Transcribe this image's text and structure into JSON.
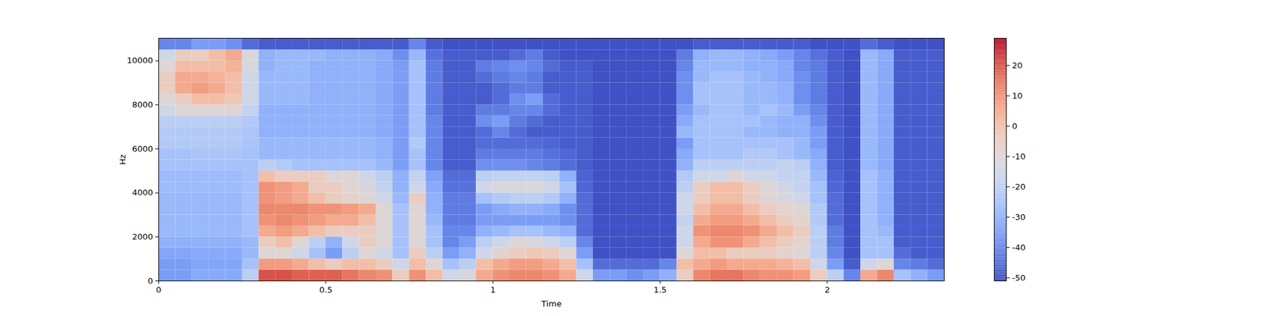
{
  "chart_data": {
    "type": "heatmap",
    "x_label": "Time",
    "y_label": "Hz",
    "xlim": [
      0,
      2.35
    ],
    "xticks": [
      0,
      0.5,
      1,
      1.5,
      2
    ],
    "ylim": [
      0,
      11025
    ],
    "yticks": [
      0,
      2000,
      4000,
      6000,
      8000,
      10000
    ],
    "zlim": [
      -51,
      29
    ],
    "zticks": [
      -50,
      -40,
      -30,
      -20,
      -10,
      0,
      10,
      20
    ],
    "grid": false,
    "x_edges": [
      0,
      0.05,
      0.1,
      0.15,
      0.2,
      0.25,
      0.3,
      0.35,
      0.4,
      0.45,
      0.5,
      0.55,
      0.6,
      0.65,
      0.7,
      0.75,
      0.8,
      0.85,
      0.9,
      0.95,
      1.0,
      1.05,
      1.1,
      1.15,
      1.2,
      1.25,
      1.3,
      1.35,
      1.4,
      1.45,
      1.5,
      1.55,
      1.6,
      1.65,
      1.7,
      1.75,
      1.8,
      1.85,
      1.9,
      1.95,
      2.0,
      2.05,
      2.1,
      2.15,
      2.2,
      2.25,
      2.3,
      2.35
    ],
    "y_edges": [
      0,
      500,
      1000,
      1500,
      2000,
      2500,
      3000,
      3500,
      4000,
      4500,
      5000,
      5500,
      6000,
      6500,
      7000,
      7500,
      8000,
      8500,
      9000,
      9500,
      10000,
      10500,
      11025
    ],
    "z": [
      [
        -35,
        -35,
        -32,
        -32,
        -32,
        -20,
        20,
        20,
        18,
        18,
        18,
        15,
        12,
        10,
        -5,
        10,
        0,
        -15,
        -12,
        5,
        10,
        12,
        12,
        10,
        5,
        -15,
        -35,
        -35,
        -38,
        -35,
        -30,
        -5,
        12,
        15,
        15,
        12,
        10,
        10,
        8,
        -5,
        -20,
        -40,
        5,
        12,
        -25,
        -30,
        -35
      ],
      [
        -35,
        -35,
        -33,
        -33,
        -33,
        -25,
        8,
        8,
        5,
        0,
        -5,
        0,
        0,
        -5,
        -15,
        0,
        -10,
        -25,
        -20,
        0,
        5,
        8,
        8,
        5,
        0,
        -25,
        -45,
        -45,
        -45,
        -45,
        -40,
        0,
        5,
        8,
        5,
        5,
        5,
        3,
        0,
        -15,
        -35,
        -48,
        -15,
        -10,
        -40,
        -42,
        -45
      ],
      [
        -33,
        -33,
        -32,
        -32,
        -32,
        -28,
        -10,
        -10,
        -15,
        -25,
        -35,
        -20,
        -10,
        -15,
        -25,
        -5,
        -20,
        -35,
        -30,
        -15,
        -8,
        -5,
        -3,
        -5,
        -10,
        -35,
        -50,
        -50,
        -50,
        -50,
        -50,
        -10,
        0,
        0,
        -5,
        -5,
        -5,
        -8,
        -10,
        -20,
        -40,
        -50,
        -25,
        -25,
        -45,
        -48,
        -48
      ],
      [
        -30,
        -30,
        -30,
        -30,
        -30,
        -28,
        -5,
        0,
        -10,
        -20,
        -30,
        -15,
        -5,
        -10,
        -25,
        -10,
        -25,
        -40,
        -35,
        -20,
        -15,
        -10,
        -12,
        -15,
        -20,
        -40,
        -50,
        -50,
        -50,
        -50,
        -50,
        -15,
        5,
        10,
        10,
        5,
        0,
        -5,
        -8,
        -20,
        -42,
        -50,
        -25,
        -25,
        -48,
        -48,
        -48
      ],
      [
        -28,
        -28,
        -28,
        -28,
        -28,
        -25,
        5,
        8,
        5,
        0,
        -5,
        -5,
        -5,
        -10,
        -25,
        -10,
        -25,
        -40,
        -40,
        -30,
        -28,
        -25,
        -25,
        -28,
        -30,
        -45,
        -50,
        -50,
        -50,
        -50,
        -50,
        -15,
        10,
        12,
        12,
        10,
        5,
        0,
        -5,
        -20,
        -42,
        -50,
        -25,
        -28,
        -48,
        -48,
        -48
      ],
      [
        -28,
        -28,
        -28,
        -28,
        -28,
        -25,
        10,
        12,
        10,
        8,
        5,
        5,
        0,
        -10,
        -25,
        -10,
        -28,
        -42,
        -42,
        -35,
        -35,
        -35,
        -35,
        -35,
        -38,
        -45,
        -50,
        -50,
        -50,
        -50,
        -50,
        -18,
        5,
        8,
        8,
        5,
        0,
        -5,
        -8,
        -22,
        -45,
        -50,
        -25,
        -30,
        -48,
        -48,
        -48
      ],
      [
        -28,
        -28,
        -28,
        -28,
        -28,
        -25,
        12,
        12,
        12,
        10,
        10,
        8,
        5,
        -10,
        -25,
        -10,
        -30,
        -42,
        -42,
        -35,
        -32,
        -30,
        -30,
        -32,
        -38,
        -45,
        -50,
        -50,
        -50,
        -50,
        -50,
        -15,
        0,
        5,
        5,
        0,
        -5,
        -8,
        -10,
        -22,
        -45,
        -50,
        -25,
        -30,
        -48,
        -48,
        -48
      ],
      [
        -28,
        -28,
        -28,
        -28,
        -28,
        -25,
        10,
        8,
        5,
        0,
        -5,
        -8,
        -10,
        -15,
        -28,
        -5,
        -30,
        -42,
        -42,
        -25,
        -22,
        -20,
        -20,
        -22,
        -30,
        -45,
        -50,
        -50,
        -50,
        -50,
        -50,
        -15,
        -5,
        0,
        0,
        -5,
        -10,
        -12,
        -15,
        -25,
        -45,
        -50,
        -25,
        -30,
        -48,
        -48,
        -48
      ],
      [
        -27,
        -27,
        -27,
        -27,
        -27,
        -25,
        10,
        8,
        5,
        -5,
        -5,
        -10,
        -12,
        -18,
        -30,
        -15,
        -32,
        -44,
        -44,
        -15,
        -12,
        -12,
        -12,
        -15,
        -25,
        -46,
        -50,
        -50,
        -50,
        -50,
        -50,
        -20,
        -5,
        0,
        0,
        -5,
        -10,
        -15,
        -18,
        -25,
        -46,
        -50,
        -25,
        -30,
        -48,
        -48,
        -48
      ],
      [
        -27,
        -27,
        -27,
        -27,
        -27,
        -25,
        0,
        -5,
        -5,
        -5,
        -10,
        -10,
        -15,
        -20,
        -30,
        -18,
        -34,
        -45,
        -45,
        -20,
        -18,
        -18,
        -18,
        -20,
        -30,
        -47,
        -50,
        -50,
        -50,
        -50,
        -50,
        -22,
        -15,
        -15,
        -10,
        -15,
        -15,
        -18,
        -18,
        -28,
        -47,
        -50,
        -25,
        -30,
        -48,
        -48,
        -48
      ],
      [
        -25,
        -25,
        -25,
        -25,
        -25,
        -25,
        -20,
        -22,
        -25,
        -25,
        -25,
        -25,
        -25,
        -28,
        -35,
        -25,
        -40,
        -48,
        -48,
        -38,
        -38,
        -38,
        -40,
        -42,
        -45,
        -48,
        -50,
        -50,
        -50,
        -50,
        -50,
        -30,
        -20,
        -20,
        -20,
        -20,
        -20,
        -18,
        -20,
        -30,
        -48,
        -50,
        -28,
        -32,
        -48,
        -48,
        -48
      ],
      [
        -25,
        -25,
        -24,
        -24,
        -24,
        -25,
        -28,
        -28,
        -28,
        -28,
        -28,
        -28,
        -28,
        -30,
        -35,
        -25,
        -40,
        -48,
        -48,
        -42,
        -42,
        -42,
        -42,
        -44,
        -46,
        -48,
        -50,
        -50,
        -50,
        -50,
        -50,
        -32,
        -25,
        -25,
        -25,
        -22,
        -22,
        -25,
        -28,
        -32,
        -48,
        -50,
        -28,
        -32,
        -48,
        -48,
        -48
      ],
      [
        -22,
        -22,
        -22,
        -22,
        -22,
        -24,
        -28,
        -28,
        -28,
        -28,
        -28,
        -28,
        -28,
        -30,
        -35,
        -22,
        -40,
        -48,
        -48,
        -45,
        -45,
        -45,
        -45,
        -46,
        -48,
        -48,
        -50,
        -50,
        -50,
        -50,
        -50,
        -35,
        -25,
        -25,
        -25,
        -25,
        -25,
        -25,
        -28,
        -35,
        -48,
        -50,
        -28,
        -32,
        -48,
        -48,
        -48
      ],
      [
        -22,
        -22,
        -22,
        -22,
        -22,
        -24,
        -30,
        -30,
        -30,
        -30,
        -30,
        -30,
        -30,
        -32,
        -35,
        -25,
        -40,
        -48,
        -48,
        -45,
        -40,
        -45,
        -48,
        -48,
        -48,
        -48,
        -50,
        -50,
        -50,
        -50,
        -50,
        -28,
        -25,
        -25,
        -25,
        -28,
        -28,
        -30,
        -30,
        -35,
        -48,
        -50,
        -28,
        -32,
        -48,
        -48,
        -48
      ],
      [
        -20,
        -20,
        -20,
        -20,
        -20,
        -22,
        -30,
        -30,
        -30,
        -30,
        -30,
        -30,
        -30,
        -32,
        -35,
        -25,
        -40,
        -48,
        -48,
        -38,
        -35,
        -42,
        -45,
        -48,
        -48,
        -48,
        -50,
        -50,
        -50,
        -50,
        -50,
        -32,
        -25,
        -25,
        -25,
        -25,
        -28,
        -30,
        -30,
        -38,
        -48,
        -50,
        -28,
        -32,
        -48,
        -48,
        -48
      ],
      [
        -15,
        -10,
        -10,
        -10,
        -10,
        -18,
        -30,
        -30,
        -30,
        -30,
        -30,
        -30,
        -30,
        -32,
        -35,
        -25,
        -42,
        -48,
        -48,
        -42,
        -42,
        -40,
        -40,
        -45,
        -48,
        -48,
        -50,
        -50,
        -50,
        -50,
        -50,
        -35,
        -28,
        -25,
        -25,
        -28,
        -25,
        -28,
        -35,
        -40,
        -48,
        -50,
        -28,
        -32,
        -48,
        -48,
        -48
      ],
      [
        -10,
        -5,
        0,
        0,
        -3,
        -15,
        -28,
        -28,
        -28,
        -30,
        -30,
        -30,
        -30,
        -32,
        -35,
        -25,
        -42,
        -48,
        -48,
        -48,
        -45,
        -38,
        -35,
        -45,
        -48,
        -48,
        -50,
        -50,
        -50,
        -50,
        -50,
        -38,
        -25,
        -25,
        -25,
        -28,
        -28,
        -30,
        -38,
        -42,
        -48,
        -50,
        -28,
        -32,
        -48,
        -48,
        -48
      ],
      [
        -5,
        5,
        8,
        5,
        0,
        -15,
        -28,
        -28,
        -28,
        -30,
        -30,
        -30,
        -30,
        -32,
        -35,
        -25,
        -42,
        -48,
        -48,
        -48,
        -45,
        -42,
        -42,
        -48,
        -48,
        -48,
        -50,
        -50,
        -50,
        -50,
        -50,
        -38,
        -25,
        -25,
        -25,
        -28,
        -28,
        -30,
        -38,
        -42,
        -48,
        -50,
        -28,
        -32,
        -48,
        -48,
        -48
      ],
      [
        -5,
        5,
        5,
        3,
        0,
        -15,
        -28,
        -28,
        -28,
        -30,
        -30,
        -30,
        -30,
        -32,
        -35,
        -25,
        -42,
        -48,
        -48,
        -45,
        -42,
        -40,
        -42,
        -48,
        -48,
        -48,
        -50,
        -50,
        -50,
        -50,
        -50,
        -38,
        -28,
        -25,
        -25,
        -28,
        -30,
        -32,
        -38,
        -42,
        -48,
        -50,
        -28,
        -32,
        -48,
        -48,
        -48
      ],
      [
        -10,
        0,
        0,
        0,
        3,
        -12,
        -30,
        -28,
        -28,
        -30,
        -30,
        -30,
        -30,
        -32,
        -35,
        -25,
        -42,
        -48,
        -48,
        -42,
        -40,
        -38,
        -40,
        -45,
        -48,
        -48,
        -50,
        -50,
        -50,
        -50,
        -50,
        -40,
        -28,
        -28,
        -28,
        -30,
        -30,
        -32,
        -40,
        -42,
        -48,
        -50,
        -28,
        -32,
        -48,
        -48,
        -48
      ],
      [
        -15,
        -5,
        -5,
        0,
        5,
        -12,
        -30,
        -28,
        -28,
        -28,
        -30,
        -30,
        -30,
        -32,
        -38,
        -28,
        -44,
        -48,
        -48,
        -48,
        -48,
        -45,
        -42,
        -48,
        -50,
        -50,
        -50,
        -50,
        -50,
        -50,
        -50,
        -42,
        -30,
        -28,
        -28,
        -30,
        -32,
        -35,
        -40,
        -44,
        -48,
        -50,
        -28,
        -32,
        -48,
        -48,
        -48
      ],
      [
        -40,
        -40,
        -35,
        -35,
        -38,
        -45,
        -48,
        -48,
        -48,
        -48,
        -48,
        -48,
        -48,
        -48,
        -48,
        -40,
        -48,
        -50,
        -50,
        -50,
        -50,
        -50,
        -50,
        -50,
        -50,
        -50,
        -50,
        -50,
        -50,
        -50,
        -50,
        -50,
        -48,
        -48,
        -48,
        -48,
        -48,
        -48,
        -48,
        -50,
        -50,
        -50,
        -45,
        -48,
        -50,
        -50,
        -50
      ]
    ]
  }
}
